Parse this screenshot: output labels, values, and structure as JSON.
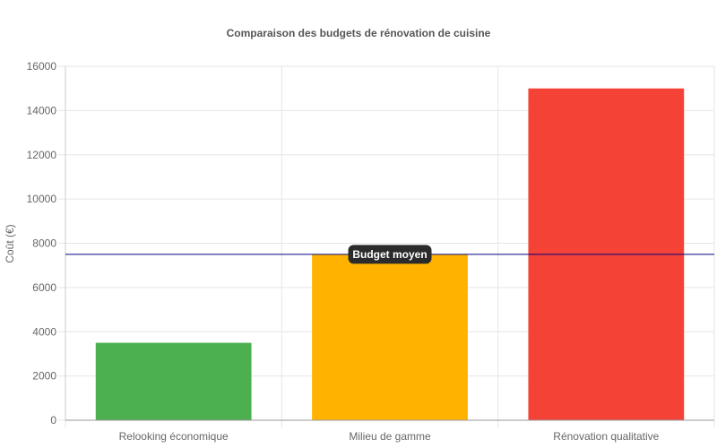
{
  "chart_data": {
    "type": "bar",
    "title": "Comparaison des budgets de rénovation de cuisine",
    "xlabel": "",
    "ylabel": "Coût (€)",
    "categories": [
      "Relooking économique",
      "Milieu de gamme",
      "Rénovation qualitative"
    ],
    "values": [
      3500,
      7500,
      15000
    ],
    "colors": [
      "#4caf50",
      "#ffb300",
      "#f44336"
    ],
    "ylim": [
      0,
      16000
    ],
    "yticks": [
      0,
      2000,
      4000,
      6000,
      8000,
      10000,
      12000,
      14000,
      16000
    ],
    "grid": true,
    "legend": "none",
    "annotation": {
      "label": "Budget moyen",
      "value": 7500,
      "line_color": "#000080",
      "label_bg": "#2b2b2b"
    }
  }
}
